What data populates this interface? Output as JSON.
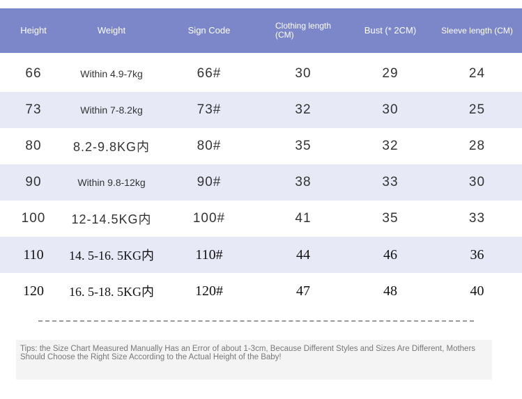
{
  "table": {
    "columns": [
      "Height",
      "Weight",
      "Sign Code",
      "Clothing length (CM)",
      "Bust (* 2CM)",
      "Sleeve length (CM)"
    ],
    "rows": [
      [
        "66",
        "Within 4.9-7kg",
        "66#",
        "30",
        "29",
        "24"
      ],
      [
        "73",
        "Within 7-8.2kg",
        "73#",
        "32",
        "30",
        "25"
      ],
      [
        "80",
        "8.2-9.8KG内",
        "80#",
        "35",
        "32",
        "28"
      ],
      [
        "90",
        "Within 9.8-12kg",
        "90#",
        "38",
        "33",
        "30"
      ],
      [
        "100",
        "12-14.5KG内",
        "100#",
        "41",
        "35",
        "33"
      ],
      [
        "110",
        "14. 5-16. 5KG内",
        "110#",
        "44",
        "46",
        "36"
      ],
      [
        "120",
        "16. 5-18. 5KG内",
        "120#",
        "47",
        "48",
        "40"
      ]
    ]
  },
  "tips": "Tips: the Size Chart Measured Manually Has an Error of about 1-3cm, Because Different Styles and Sizes Are Different, Mothers Should Choose the Right Size According to the Actual Height of the Baby!"
}
